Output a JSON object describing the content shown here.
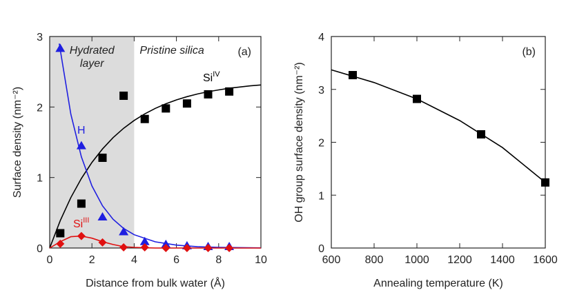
{
  "chart_data": [
    {
      "type": "scatter",
      "panel_label": "(a)",
      "x_label": "Distance from bulk water (Å)",
      "y_label": "Surface density (nm⁻²)",
      "xlim": [
        0,
        10
      ],
      "xticks": [
        0,
        2,
        4,
        6,
        8,
        10
      ],
      "ylim": [
        0,
        3
      ],
      "yticks": [
        0,
        1,
        2,
        3
      ],
      "shade": [
        0,
        4
      ],
      "shade_color": "#dcdcdc",
      "annotations": [
        "Hydrated",
        "layer",
        "Pristine silica"
      ],
      "x": [
        0.5,
        1.5,
        2.5,
        3.5,
        4.5,
        5.5,
        6.5,
        7.5,
        8.5
      ],
      "series": [
        {
          "name": "Si",
          "superscript": "IV",
          "color": "#000000",
          "marker": "square",
          "values": [
            0.21,
            0.63,
            1.28,
            2.16,
            1.83,
            1.98,
            2.05,
            2.18,
            2.22
          ],
          "fit_x": [
            0,
            0.5,
            1,
            1.5,
            2,
            2.5,
            3,
            3.5,
            4,
            4.5,
            5,
            5.5,
            6,
            6.5,
            7,
            7.5,
            8,
            8.5,
            9,
            9.5,
            10
          ],
          "fit_values": [
            0,
            0.389,
            0.715,
            0.987,
            1.215,
            1.405,
            1.565,
            1.698,
            1.81,
            1.903,
            1.981,
            2.046,
            2.101,
            2.147,
            2.185,
            2.217,
            2.243,
            2.266,
            2.284,
            2.3,
            2.313
          ]
        },
        {
          "name": "H",
          "color": "#1f1fe0",
          "marker": "triangle",
          "values": [
            2.83,
            1.45,
            0.44,
            0.23,
            0.09,
            0.05,
            0.03,
            0.02,
            0.02
          ],
          "fit_x": [
            0.45,
            1,
            1.5,
            2,
            2.5,
            3,
            3.5,
            4,
            5,
            6,
            7,
            8,
            10
          ],
          "fit_values": [
            2.9,
            1.9,
            1.293,
            0.88,
            0.599,
            0.408,
            0.278,
            0.189,
            0.088,
            0.041,
            0.019,
            0.009,
            0.002
          ]
        },
        {
          "name": "Si",
          "superscript": "III",
          "color": "#e01010",
          "marker": "diamond",
          "values": [
            0.06,
            0.17,
            0.08,
            0.01,
            0.01,
            0,
            0,
            0,
            0
          ],
          "fit_x": [
            0,
            0.5,
            1,
            1.5,
            2,
            2.5,
            3,
            3.5,
            4,
            5,
            10
          ],
          "fit_values": [
            0,
            0.09,
            0.16,
            0.17,
            0.14,
            0.09,
            0.05,
            0.02,
            0.01,
            0,
            0
          ]
        }
      ]
    },
    {
      "type": "scatter",
      "panel_label": "(b)",
      "x_label": "Annealing temperature (K)",
      "y_label": "OH group surface density (nm⁻²)",
      "xlim": [
        600,
        1600
      ],
      "xticks": [
        600,
        800,
        1000,
        1200,
        1400,
        1600
      ],
      "ylim": [
        0,
        4
      ],
      "yticks": [
        0,
        1,
        2,
        3,
        4
      ],
      "x": [
        700,
        1000,
        1300,
        1600
      ],
      "series": [
        {
          "color": "#000000",
          "marker": "square",
          "values": [
            3.27,
            2.82,
            2.15,
            1.24
          ],
          "fit_x": [
            600,
            800,
            1000,
            1200,
            1400,
            1600
          ],
          "fit_values": [
            3.37,
            3.13,
            2.82,
            2.41,
            1.9,
            1.24
          ]
        }
      ]
    }
  ]
}
